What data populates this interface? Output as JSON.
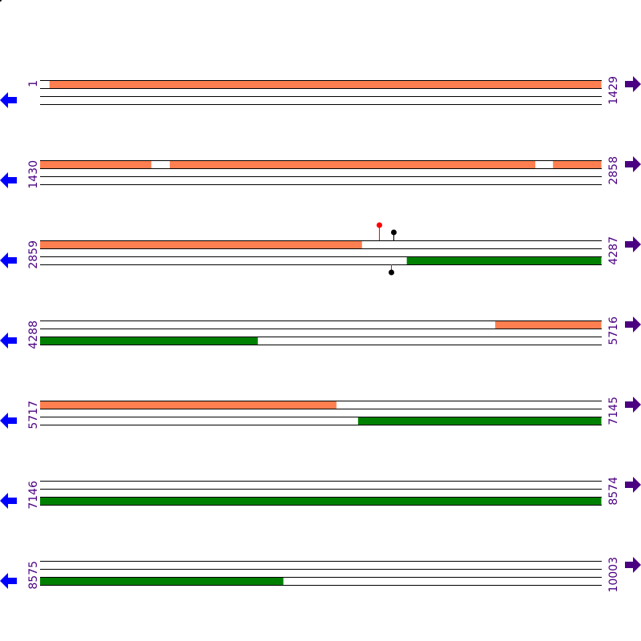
{
  "colors": {
    "forward_feature": "#ff7f50",
    "reverse_feature": "#008000",
    "label": "#4b0082",
    "left_arrow": "#0000ff",
    "right_arrow": "#4b0082",
    "pin_red": "#ff0000",
    "pin_black": "#000000"
  },
  "icons": {
    "left": "arrow-left-icon",
    "right": "arrow-right-icon"
  },
  "rows": [
    {
      "start": "1",
      "end": "1429",
      "s": 1,
      "e": 1429,
      "top": [
        [
          25,
          1429
        ]
      ],
      "bottom": []
    },
    {
      "start": "1430",
      "end": "2858",
      "s": 1430,
      "e": 2858,
      "top": [
        [
          1430,
          1713
        ],
        [
          1760,
          2690
        ],
        [
          2735,
          2858
        ]
      ],
      "bottom": []
    },
    {
      "start": "2859",
      "end": "4287",
      "s": 2859,
      "e": 4287,
      "top": [
        [
          2859,
          3678
        ]
      ],
      "bottom": [
        [
          3792,
          4287
        ]
      ],
      "pins": [
        {
          "pos": 3721,
          "strand": "top",
          "color": "red",
          "tall": true
        },
        {
          "pos": 3758,
          "strand": "top",
          "color": "black",
          "tall": false
        },
        {
          "pos": 3752,
          "strand": "bottom",
          "color": "black",
          "stem": "red"
        }
      ]
    },
    {
      "start": "4288",
      "end": "5716",
      "s": 4288,
      "e": 5716,
      "top": [
        [
          5446,
          5716
        ]
      ],
      "bottom": [
        [
          4288,
          4842
        ]
      ]
    },
    {
      "start": "5717",
      "end": "7145",
      "s": 5717,
      "e": 7145,
      "top": [
        [
          5717,
          6471
        ]
      ],
      "bottom": [
        [
          6526,
          7145
        ]
      ]
    },
    {
      "start": "7146",
      "end": "8574",
      "s": 7146,
      "e": 8574,
      "top": [],
      "bottom": [
        [
          7146,
          8574
        ]
      ]
    },
    {
      "start": "8575",
      "end": "10003",
      "s": 8575,
      "e": 10003,
      "top": [],
      "bottom": [
        [
          8575,
          9194
        ]
      ]
    }
  ]
}
